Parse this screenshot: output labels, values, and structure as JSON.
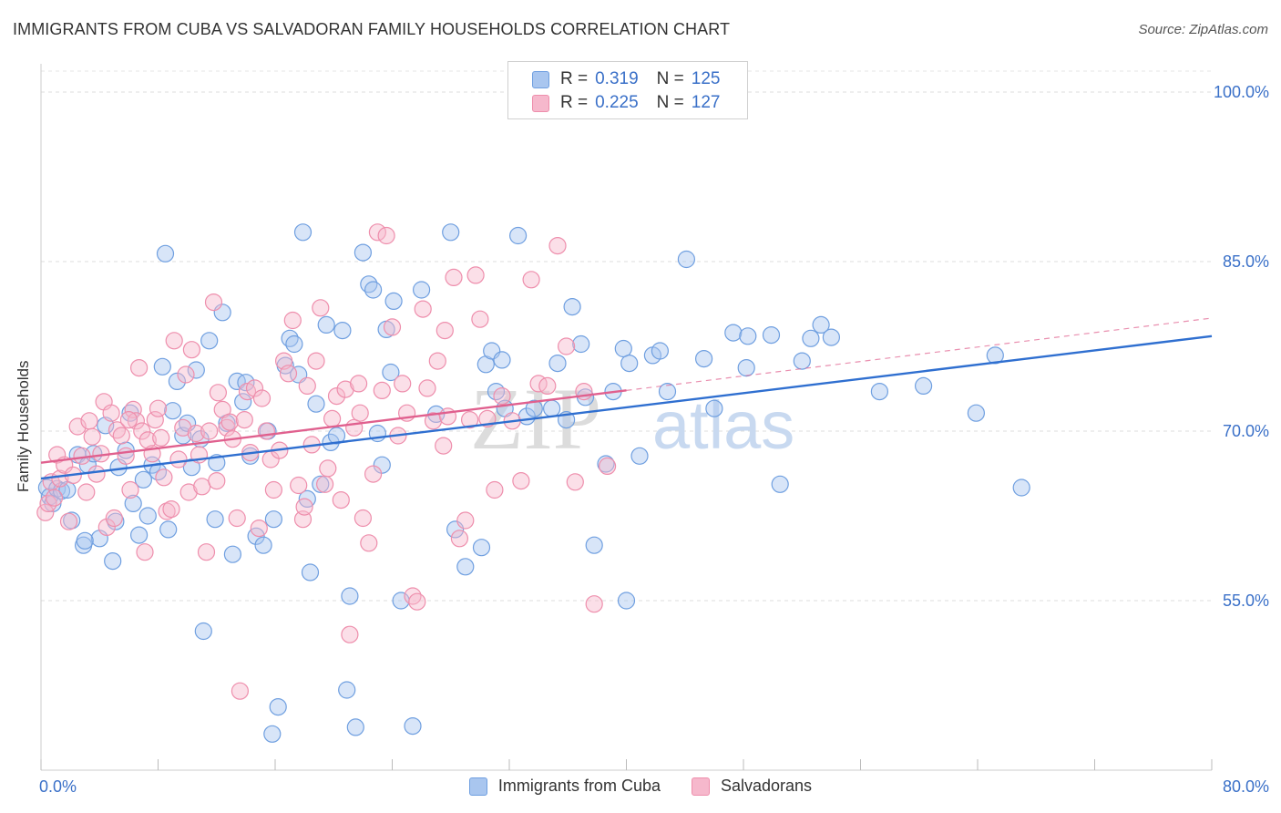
{
  "header": {
    "title": "IMMIGRANTS FROM CUBA VS SALVADORAN FAMILY HOUSEHOLDS CORRELATION CHART",
    "source": "Source: ZipAtlas.com"
  },
  "watermark": {
    "left": "ZIP",
    "right": "atlas"
  },
  "legend": {
    "rows": [
      {
        "r_label": "R =",
        "r_value": "0.319",
        "n_label": "N =",
        "n_value": "125",
        "color": "#a9c6ef",
        "border": "#6f9fe0"
      },
      {
        "r_label": "R =",
        "r_value": "0.225",
        "n_label": "N =",
        "n_value": "127",
        "color": "#f6b8cc",
        "border": "#ee8eac"
      }
    ]
  },
  "chart_data": {
    "type": "scatter",
    "title": "IMMIGRANTS FROM CUBA VS SALVADORAN FAMILY HOUSEHOLDS CORRELATION CHART",
    "xlabel": "",
    "ylabel": "Family Households",
    "xlim": [
      0,
      80
    ],
    "ylim": [
      40,
      102.5
    ],
    "x_tick_labels": [
      "0.0%",
      "80.0%"
    ],
    "y_ticks": [
      55,
      70,
      85,
      100
    ],
    "y_tick_labels": [
      "55.0%",
      "70.0%",
      "85.0%",
      "100.0%"
    ],
    "grid": true,
    "legend_position": "top-center",
    "series": [
      {
        "name": "Immigrants from Cuba",
        "color": "#6f9fe0",
        "fill": "rgba(169,198,239,0.45)",
        "trend": {
          "x": [
            0,
            80
          ],
          "y": [
            65.8,
            78.4
          ],
          "color": "#2f6fd0"
        },
        "points": [
          [
            0.4,
            65.0
          ],
          [
            0.6,
            64.2
          ],
          [
            0.8,
            63.6
          ],
          [
            1.1,
            64.9
          ],
          [
            1.4,
            64.7
          ],
          [
            1.8,
            64.8
          ],
          [
            2.1,
            62.1
          ],
          [
            2.5,
            67.9
          ],
          [
            2.9,
            59.9
          ],
          [
            3.2,
            67.0
          ],
          [
            3.6,
            68.0
          ],
          [
            4.0,
            60.5
          ],
          [
            4.4,
            70.5
          ],
          [
            4.9,
            58.5
          ],
          [
            5.1,
            62.0
          ],
          [
            5.3,
            66.8
          ],
          [
            5.8,
            68.3
          ],
          [
            6.1,
            71.6
          ],
          [
            6.3,
            63.6
          ],
          [
            6.7,
            60.8
          ],
          [
            7.0,
            65.7
          ],
          [
            7.3,
            62.5
          ],
          [
            7.6,
            67.0
          ],
          [
            8.0,
            66.4
          ],
          [
            8.3,
            75.7
          ],
          [
            8.5,
            85.7
          ],
          [
            8.7,
            61.3
          ],
          [
            9.0,
            71.8
          ],
          [
            9.3,
            74.4
          ],
          [
            9.7,
            69.6
          ],
          [
            10.0,
            70.7
          ],
          [
            10.3,
            66.8
          ],
          [
            10.6,
            75.4
          ],
          [
            10.9,
            69.3
          ],
          [
            11.1,
            52.3
          ],
          [
            11.5,
            78.0
          ],
          [
            11.9,
            62.2
          ],
          [
            12.0,
            67.2
          ],
          [
            12.4,
            80.5
          ],
          [
            12.7,
            70.7
          ],
          [
            13.1,
            59.1
          ],
          [
            13.4,
            74.4
          ],
          [
            13.8,
            72.6
          ],
          [
            14.0,
            74.3
          ],
          [
            14.3,
            67.8
          ],
          [
            14.7,
            60.7
          ],
          [
            15.2,
            59.9
          ],
          [
            15.5,
            70.0
          ],
          [
            15.8,
            43.2
          ],
          [
            15.9,
            62.2
          ],
          [
            16.2,
            45.6
          ],
          [
            16.7,
            75.8
          ],
          [
            17.0,
            78.2
          ],
          [
            17.3,
            77.7
          ],
          [
            17.6,
            75.0
          ],
          [
            17.9,
            87.6
          ],
          [
            18.2,
            64.0
          ],
          [
            18.4,
            57.5
          ],
          [
            18.8,
            72.4
          ],
          [
            19.1,
            65.3
          ],
          [
            19.5,
            79.4
          ],
          [
            19.8,
            69.0
          ],
          [
            20.2,
            69.6
          ],
          [
            20.6,
            78.9
          ],
          [
            20.9,
            47.1
          ],
          [
            21.1,
            55.4
          ],
          [
            21.5,
            43.8
          ],
          [
            22.0,
            85.8
          ],
          [
            22.4,
            83.0
          ],
          [
            22.7,
            82.5
          ],
          [
            23.0,
            69.8
          ],
          [
            23.3,
            67.0
          ],
          [
            23.6,
            79.0
          ],
          [
            23.9,
            75.2
          ],
          [
            24.1,
            81.5
          ],
          [
            24.6,
            55.0
          ],
          [
            25.4,
            43.9
          ],
          [
            26.0,
            82.5
          ],
          [
            27.0,
            71.5
          ],
          [
            28.0,
            87.6
          ],
          [
            28.3,
            61.3
          ],
          [
            29.0,
            58.0
          ],
          [
            30.1,
            59.7
          ],
          [
            30.4,
            75.9
          ],
          [
            30.8,
            77.1
          ],
          [
            31.1,
            73.5
          ],
          [
            31.5,
            76.3
          ],
          [
            31.7,
            72.0
          ],
          [
            32.6,
            87.3
          ],
          [
            33.2,
            71.3
          ],
          [
            33.7,
            72.0
          ],
          [
            34.9,
            72.0
          ],
          [
            35.3,
            76.0
          ],
          [
            35.9,
            71.0
          ],
          [
            36.3,
            81.0
          ],
          [
            36.9,
            77.7
          ],
          [
            37.2,
            73.0
          ],
          [
            37.8,
            59.9
          ],
          [
            38.6,
            67.1
          ],
          [
            39.1,
            73.5
          ],
          [
            39.8,
            77.3
          ],
          [
            40.0,
            55.0
          ],
          [
            40.2,
            76.0
          ],
          [
            40.9,
            67.8
          ],
          [
            41.8,
            76.7
          ],
          [
            42.3,
            77.1
          ],
          [
            42.8,
            73.5
          ],
          [
            44.1,
            85.2
          ],
          [
            45.3,
            76.4
          ],
          [
            46.0,
            72.0
          ],
          [
            47.3,
            78.7
          ],
          [
            48.2,
            75.6
          ],
          [
            48.3,
            78.4
          ],
          [
            49.9,
            78.5
          ],
          [
            50.5,
            65.3
          ],
          [
            52.0,
            76.2
          ],
          [
            52.6,
            78.2
          ],
          [
            53.3,
            79.4
          ],
          [
            54.0,
            78.3
          ],
          [
            57.3,
            73.5
          ],
          [
            60.3,
            74.0
          ],
          [
            63.9,
            71.6
          ],
          [
            65.2,
            76.7
          ],
          [
            67.0,
            65.0
          ],
          [
            3.0,
            60.3
          ]
        ]
      },
      {
        "name": "Salvadorans",
        "color": "#ee8eac",
        "fill": "rgba(246,184,204,0.45)",
        "trend": {
          "x": [
            0,
            40
          ],
          "y": [
            67.2,
            73.6
          ],
          "color": "#e0608e"
        },
        "trend_extension": {
          "x": [
            40,
            80
          ],
          "y": [
            73.6,
            80.0
          ]
        },
        "points": [
          [
            0.3,
            62.8
          ],
          [
            0.5,
            63.6
          ],
          [
            0.7,
            65.5
          ],
          [
            0.9,
            64.1
          ],
          [
            1.1,
            67.9
          ],
          [
            1.3,
            65.8
          ],
          [
            1.6,
            67.0
          ],
          [
            1.9,
            62.0
          ],
          [
            2.2,
            66.1
          ],
          [
            2.5,
            70.4
          ],
          [
            2.8,
            67.8
          ],
          [
            3.1,
            64.6
          ],
          [
            3.3,
            70.9
          ],
          [
            3.5,
            69.5
          ],
          [
            3.8,
            66.2
          ],
          [
            4.1,
            68.0
          ],
          [
            4.3,
            72.6
          ],
          [
            4.5,
            61.5
          ],
          [
            4.8,
            71.6
          ],
          [
            5.0,
            62.3
          ],
          [
            5.2,
            70.1
          ],
          [
            5.5,
            69.6
          ],
          [
            5.8,
            67.8
          ],
          [
            6.1,
            64.8
          ],
          [
            6.3,
            71.9
          ],
          [
            6.5,
            70.9
          ],
          [
            6.7,
            75.6
          ],
          [
            6.9,
            70.0
          ],
          [
            7.1,
            59.3
          ],
          [
            7.3,
            69.2
          ],
          [
            7.6,
            68.0
          ],
          [
            7.8,
            71.0
          ],
          [
            8.0,
            72.0
          ],
          [
            8.2,
            69.4
          ],
          [
            8.4,
            65.9
          ],
          [
            8.6,
            62.9
          ],
          [
            8.9,
            63.1
          ],
          [
            9.1,
            78.0
          ],
          [
            9.4,
            67.5
          ],
          [
            9.7,
            70.3
          ],
          [
            9.9,
            75.0
          ],
          [
            10.1,
            64.6
          ],
          [
            10.3,
            77.2
          ],
          [
            10.6,
            69.8
          ],
          [
            10.8,
            67.9
          ],
          [
            11.0,
            65.1
          ],
          [
            11.3,
            59.3
          ],
          [
            11.5,
            70.0
          ],
          [
            11.8,
            81.4
          ],
          [
            12.1,
            73.4
          ],
          [
            12.4,
            71.9
          ],
          [
            12.7,
            70.3
          ],
          [
            12.9,
            70.8
          ],
          [
            13.1,
            69.3
          ],
          [
            13.4,
            62.3
          ],
          [
            13.6,
            47.0
          ],
          [
            13.9,
            71.0
          ],
          [
            14.1,
            73.5
          ],
          [
            14.3,
            68.1
          ],
          [
            14.6,
            73.8
          ],
          [
            14.9,
            61.4
          ],
          [
            15.1,
            72.9
          ],
          [
            15.4,
            70.0
          ],
          [
            15.7,
            67.5
          ],
          [
            15.9,
            64.8
          ],
          [
            16.3,
            68.3
          ],
          [
            16.6,
            76.2
          ],
          [
            16.9,
            75.1
          ],
          [
            17.2,
            79.8
          ],
          [
            17.6,
            65.2
          ],
          [
            17.9,
            62.2
          ],
          [
            18.2,
            74.0
          ],
          [
            18.5,
            68.8
          ],
          [
            18.8,
            76.2
          ],
          [
            19.1,
            80.9
          ],
          [
            19.4,
            65.3
          ],
          [
            19.6,
            66.7
          ],
          [
            19.9,
            71.1
          ],
          [
            20.2,
            73.1
          ],
          [
            20.5,
            63.9
          ],
          [
            20.8,
            73.7
          ],
          [
            21.1,
            52.0
          ],
          [
            21.4,
            70.3
          ],
          [
            21.7,
            74.2
          ],
          [
            22.0,
            62.3
          ],
          [
            22.4,
            60.1
          ],
          [
            22.7,
            66.2
          ],
          [
            23.0,
            87.6
          ],
          [
            23.3,
            73.6
          ],
          [
            23.6,
            87.3
          ],
          [
            24.0,
            79.2
          ],
          [
            24.4,
            69.6
          ],
          [
            24.7,
            74.2
          ],
          [
            25.0,
            71.6
          ],
          [
            25.4,
            55.4
          ],
          [
            25.7,
            54.9
          ],
          [
            26.1,
            80.8
          ],
          [
            26.4,
            73.8
          ],
          [
            26.8,
            70.9
          ],
          [
            27.1,
            76.2
          ],
          [
            27.5,
            68.7
          ],
          [
            27.8,
            71.3
          ],
          [
            28.2,
            83.6
          ],
          [
            28.6,
            60.5
          ],
          [
            29.0,
            62.1
          ],
          [
            29.3,
            71.0
          ],
          [
            29.7,
            83.8
          ],
          [
            30.0,
            79.9
          ],
          [
            30.5,
            71.1
          ],
          [
            31.0,
            64.8
          ],
          [
            31.5,
            73.1
          ],
          [
            32.2,
            70.9
          ],
          [
            32.8,
            65.6
          ],
          [
            33.5,
            83.4
          ],
          [
            34.0,
            74.2
          ],
          [
            34.6,
            74.0
          ],
          [
            35.3,
            86.4
          ],
          [
            35.9,
            77.5
          ],
          [
            36.5,
            65.5
          ],
          [
            37.1,
            73.5
          ],
          [
            37.8,
            54.7
          ],
          [
            38.7,
            66.9
          ],
          [
            27.6,
            78.9
          ],
          [
            18.0,
            63.3
          ],
          [
            21.8,
            71.6
          ],
          [
            12.0,
            65.6
          ],
          [
            6.0,
            71.0
          ]
        ]
      }
    ]
  },
  "bottom_legend": [
    {
      "label": "Immigrants from Cuba",
      "color": "#a9c6ef",
      "border": "#6f9fe0"
    },
    {
      "label": "Salvadorans",
      "color": "#f6b8cc",
      "border": "#ee8eac"
    }
  ]
}
